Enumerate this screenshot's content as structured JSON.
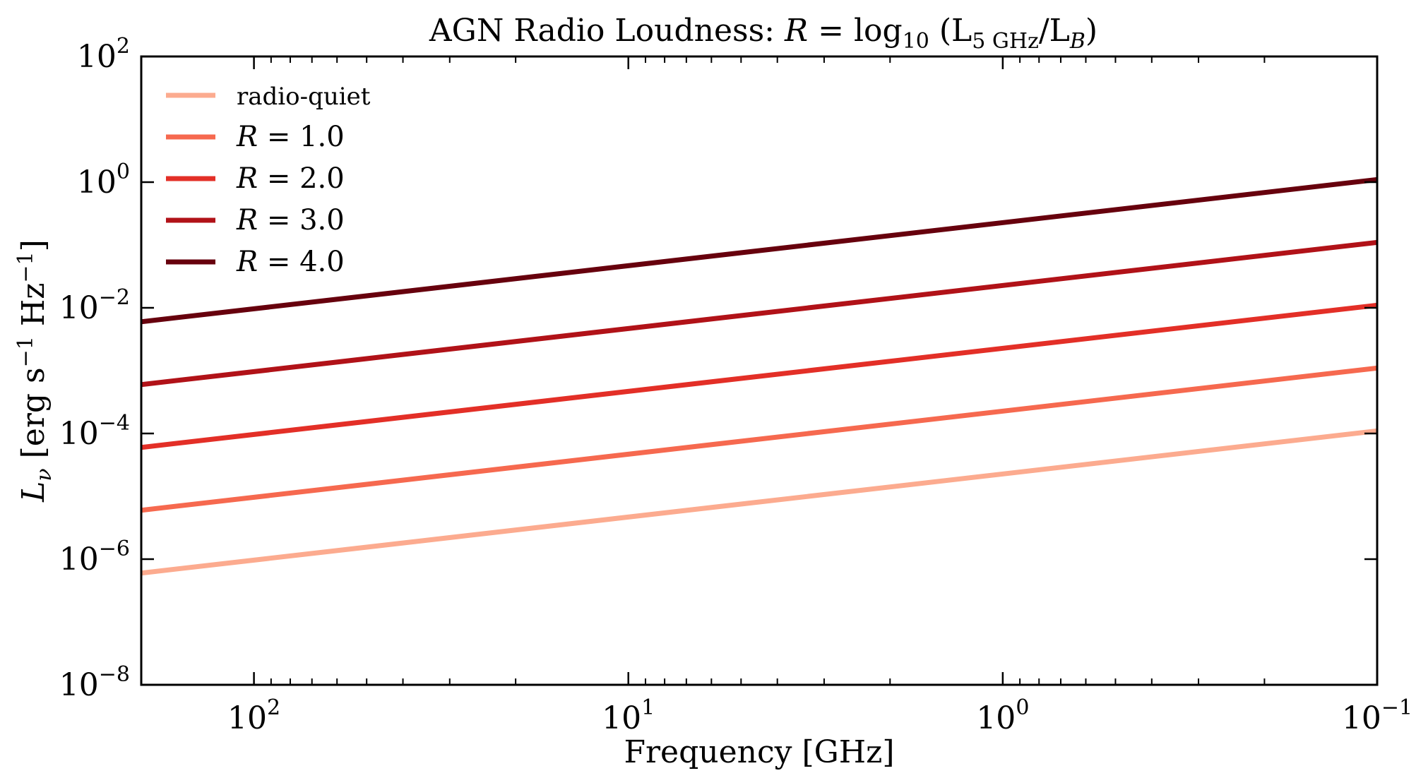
{
  "chart_data": {
    "type": "line",
    "title": "AGN Radio Loudness: R = log10 (L5 GHz/LB)",
    "title_parts": {
      "prefix": "AGN Radio Loudness: ",
      "R": "R",
      "eq": " = log",
      "log_sub": "10",
      "open": " (L",
      "L1_sub": "5 GHz",
      "slash": "/L",
      "L2_sub": "B",
      "close": ")"
    },
    "xlabel": "Frequency [GHz]",
    "ylabel": "Lν [erg s−1 Hz−1]",
    "ylabel_parts": {
      "L": "L",
      "nu": "ν",
      "a": " [erg s",
      "e1": "−1",
      "b": " Hz",
      "e2": "−1",
      "c": "]"
    },
    "x_scale": "log",
    "y_scale": "log",
    "x_reversed": true,
    "xlim": [
      200,
      0.1
    ],
    "ylim": [
      1e-08,
      100
    ],
    "x_ticks": [
      {
        "value": 100,
        "base": "10",
        "exp": "2"
      },
      {
        "value": 10,
        "base": "10",
        "exp": "1"
      },
      {
        "value": 1,
        "base": "10",
        "exp": "0"
      },
      {
        "value": 0.1,
        "base": "10",
        "exp": "−1"
      }
    ],
    "y_ticks": [
      {
        "value": 1e-08,
        "base": "10",
        "exp": "−8"
      },
      {
        "value": 1e-06,
        "base": "10",
        "exp": "−6"
      },
      {
        "value": 0.0001,
        "base": "10",
        "exp": "−4"
      },
      {
        "value": 0.01,
        "base": "10",
        "exp": "−2"
      },
      {
        "value": 1,
        "base": "10",
        "exp": "0"
      },
      {
        "value": 100,
        "base": "10",
        "exp": "2"
      }
    ],
    "grid": false,
    "legend_position": "upper-left",
    "series": [
      {
        "name": "radio-quiet",
        "color": "#fcab8f",
        "x": [
          200,
          0.1
        ],
        "y": [
          6e-07,
          0.00011
        ]
      },
      {
        "name": "R = 1.0",
        "color": "#f6694f",
        "x": [
          200,
          0.1
        ],
        "y": [
          6e-06,
          0.0011
        ]
      },
      {
        "name": "R = 2.0",
        "color": "#e32f27",
        "x": [
          200,
          0.1
        ],
        "y": [
          6e-05,
          0.011
        ]
      },
      {
        "name": "R = 3.0",
        "color": "#b11218",
        "x": [
          200,
          0.1
        ],
        "y": [
          0.0006,
          0.11
        ]
      },
      {
        "name": "R = 4.0",
        "color": "#67000d",
        "x": [
          200,
          0.1
        ],
        "y": [
          0.006,
          1.1
        ]
      }
    ]
  }
}
